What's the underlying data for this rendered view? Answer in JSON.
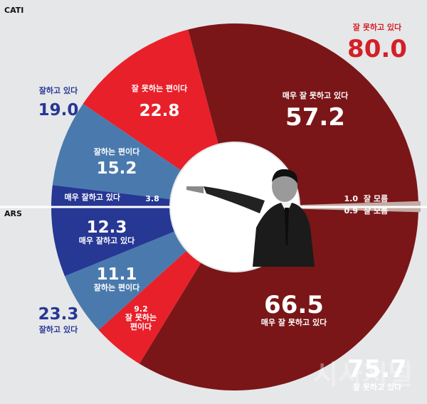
{
  "chart_data": {
    "type": "pie",
    "title": "",
    "colors": {
      "very_bad": "#7a1618",
      "bad": "#e8202a",
      "good": "#4a7aad",
      "very_good": "#263794",
      "dont_know": "#c3aca6",
      "total_red": "#d41f26",
      "total_blue": "#263794"
    },
    "surveys": [
      {
        "name": "CATI",
        "series": [
          {
            "name": "잘 모름",
            "value": 1.0,
            "label": "잘 모름"
          },
          {
            "name": "매우 잘 못하고 있다",
            "value": 57.2,
            "label": "매우 잘 못하고 있다"
          },
          {
            "name": "잘 못하는 편이다",
            "value": 22.8,
            "label": "잘 못하는 편이다"
          },
          {
            "name": "잘하는 편이다",
            "value": 15.2,
            "label": "잘하는 편이다"
          },
          {
            "name": "매우 잘하고 있다",
            "value": 3.8,
            "label": "매우 잘하고 있다"
          }
        ],
        "negative_total": {
          "label": "잘 못하고 있다",
          "value": "80.0"
        },
        "positive_total": {
          "label": "잘하고 있다",
          "value": "19.0"
        }
      },
      {
        "name": "ARS",
        "series": [
          {
            "name": "잘 모름",
            "value": 0.9,
            "label": "잘 모름"
          },
          {
            "name": "매우 잘 못하고 있다",
            "value": 66.5,
            "label": "매우 잘 못하고 있다"
          },
          {
            "name": "잘 못하는 편이다",
            "value": 9.2,
            "label": "잘 못하는\n편이다"
          },
          {
            "name": "잘하는 편이다",
            "value": 11.1,
            "label": "잘하는 편이다"
          },
          {
            "name": "매우 잘하고 있다",
            "value": 12.3,
            "label": "매우 잘하고 있다"
          }
        ],
        "negative_total": {
          "label": "잘 못하고 있다",
          "value": "75.7"
        },
        "positive_total": {
          "label": "잘하고 있다",
          "value": "23.3"
        }
      }
    ],
    "watermark": "시사저널"
  }
}
